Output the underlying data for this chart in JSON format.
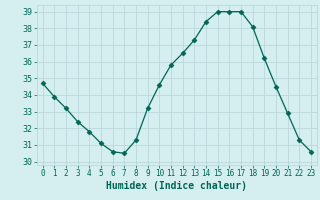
{
  "x": [
    0,
    1,
    2,
    3,
    4,
    5,
    6,
    7,
    8,
    9,
    10,
    11,
    12,
    13,
    14,
    15,
    16,
    17,
    18,
    19,
    20,
    21,
    22,
    23
  ],
  "y": [
    34.7,
    33.9,
    33.2,
    32.4,
    31.8,
    31.1,
    30.6,
    30.5,
    31.3,
    33.2,
    34.6,
    35.8,
    36.5,
    37.3,
    38.4,
    39.0,
    39.0,
    39.0,
    38.1,
    36.2,
    34.5,
    32.9,
    31.3,
    30.6
  ],
  "line_color": "#006655",
  "marker": "D",
  "marker_size": 2.5,
  "bg_color": "#d5eef0",
  "grid_color": "#b8d4d8",
  "xlabel": "Humidex (Indice chaleur)",
  "ylim": [
    29.8,
    39.4
  ],
  "yticks": [
    30,
    31,
    32,
    33,
    34,
    35,
    36,
    37,
    38,
    39
  ],
  "xticks": [
    0,
    1,
    2,
    3,
    4,
    5,
    6,
    7,
    8,
    9,
    10,
    11,
    12,
    13,
    14,
    15,
    16,
    17,
    18,
    19,
    20,
    21,
    22,
    23
  ],
  "xlabel_fontsize": 7,
  "tick_fontsize": 6,
  "xlim": [
    -0.5,
    23.5
  ]
}
